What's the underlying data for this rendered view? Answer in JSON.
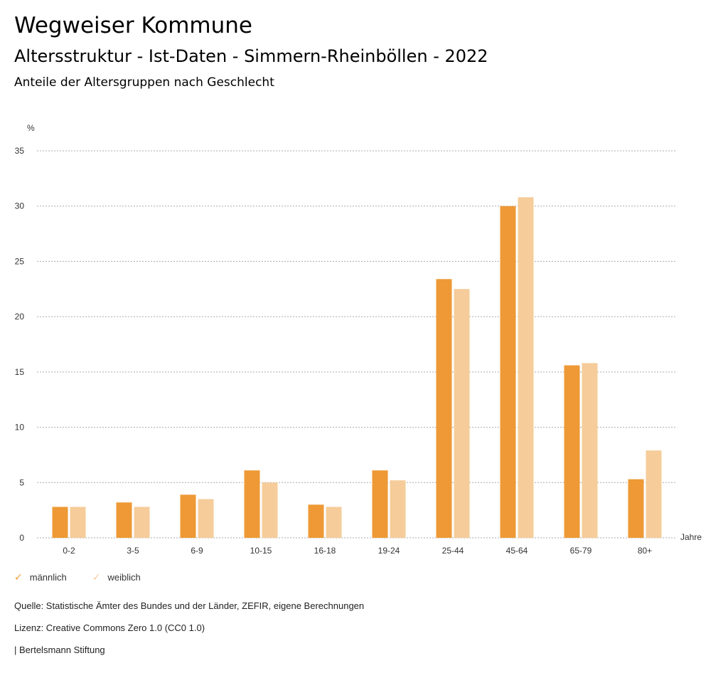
{
  "header": {
    "title": "Wegweiser Kommune",
    "subtitle": "Altersstruktur - Ist-Daten - Simmern-Rheinböllen - 2022",
    "chart_title": "Anteile der Altersgruppen nach Geschlecht"
  },
  "chart_data": {
    "type": "bar",
    "title": "Anteile der Altersgruppen nach Geschlecht",
    "ylabel": "%",
    "xlabel": "Jahre",
    "ylim": [
      0,
      35
    ],
    "yticks": [
      0,
      5,
      10,
      15,
      20,
      25,
      30,
      35
    ],
    "grid": true,
    "categories": [
      "0-2",
      "3-5",
      "6-9",
      "10-15",
      "16-18",
      "19-24",
      "25-44",
      "45-64",
      "65-79",
      "80+"
    ],
    "series": [
      {
        "name": "männlich",
        "color": "#ee9935",
        "values": [
          2.8,
          3.2,
          3.9,
          6.1,
          3.0,
          6.1,
          23.4,
          30.0,
          15.6,
          5.3
        ]
      },
      {
        "name": "weiblich",
        "color": "#f5cc9a",
        "values": [
          2.8,
          2.8,
          3.5,
          5.0,
          2.8,
          5.2,
          22.5,
          30.8,
          15.8,
          7.9
        ]
      }
    ],
    "legend": "bottom-left"
  },
  "footer": {
    "source": "Quelle: Statistische Ämter des Bundes und der Länder, ZEFIR, eigene Berechnungen",
    "license": "Lizenz: Creative Commons Zero 1.0 (CC0 1.0)",
    "brand": "| Bertelsmann Stiftung"
  }
}
